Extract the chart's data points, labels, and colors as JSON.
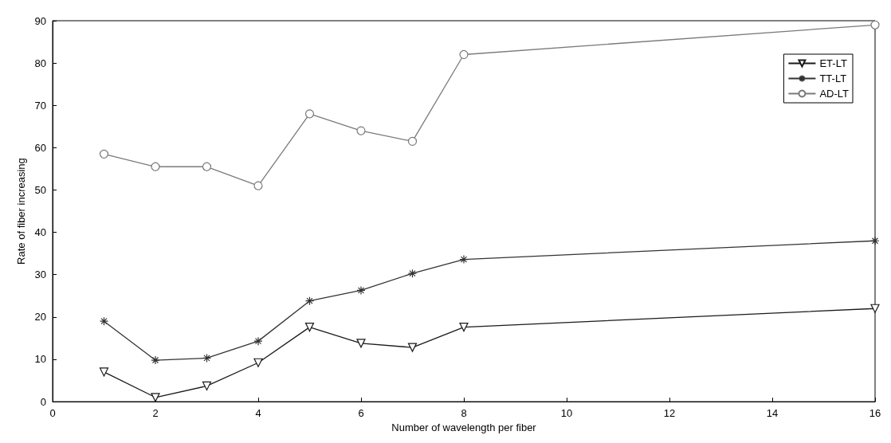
{
  "chart_data": {
    "type": "line",
    "xlabel": "Number of wavelength per fiber",
    "ylabel": "Rate of fiber increasing",
    "x": [
      1,
      2,
      3,
      4,
      5,
      6,
      7,
      8,
      16
    ],
    "xlim": [
      0,
      16
    ],
    "xticks": [
      0,
      2,
      4,
      6,
      8,
      10,
      12,
      14,
      16
    ],
    "ylim": [
      0,
      90
    ],
    "yticks": [
      0,
      10,
      20,
      30,
      40,
      50,
      60,
      70,
      80,
      90
    ],
    "grid": false,
    "legend": "top right",
    "line_style": "solid",
    "series": [
      {
        "name": "ET-LT",
        "color": "#1a1a1a",
        "marker": "triangle",
        "values": [
          7,
          1,
          3.7,
          9.2,
          17.6,
          13.8,
          12.8,
          17.6,
          22
        ]
      },
      {
        "name": "TT-LT",
        "color": "#333333",
        "marker": "cross",
        "values": [
          19,
          9.8,
          10.3,
          14.3,
          23.8,
          26.3,
          30.3,
          33.6,
          38
        ]
      },
      {
        "name": "AD-LT",
        "color": "#7a7a7a",
        "marker": "circle",
        "values": [
          58.5,
          55.5,
          55.5,
          51,
          68,
          64,
          61.5,
          82,
          89
        ]
      }
    ]
  }
}
